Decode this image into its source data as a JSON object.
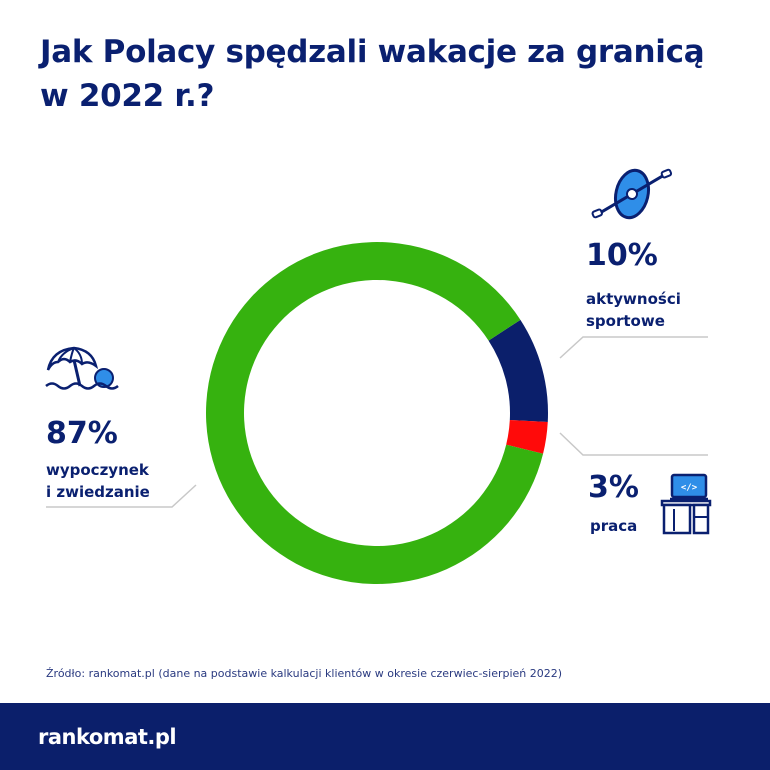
{
  "title": {
    "line1": "Jak Polacy spędzali wakacje za granicą",
    "line2": "w 2022 r.?"
  },
  "chart_data": {
    "type": "pie",
    "donut": true,
    "categories": [
      "wypoczynek i zwiedzanie",
      "aktywności sportowe",
      "praca"
    ],
    "values": [
      87,
      10,
      3
    ],
    "colors": [
      "#36b20f",
      "#0b1f6b",
      "#ff0a0a"
    ]
  },
  "labels": {
    "leisure": {
      "pct": "87%",
      "line1": "wypoczynek",
      "line2": "i zwiedzanie",
      "icon": "beach-umbrella-icon"
    },
    "sport": {
      "pct": "10%",
      "line1": "aktywności",
      "line2": "sportowe",
      "icon": "kayak-icon"
    },
    "work": {
      "pct": "3%",
      "line1": "praca",
      "icon": "desk-computer-icon"
    }
  },
  "source": "Źródło: rankomat.pl (dane na podstawie kalkulacji klientów w okresie czerwiec-sierpień 2022)",
  "footer": {
    "logo": "rankomat.pl"
  }
}
